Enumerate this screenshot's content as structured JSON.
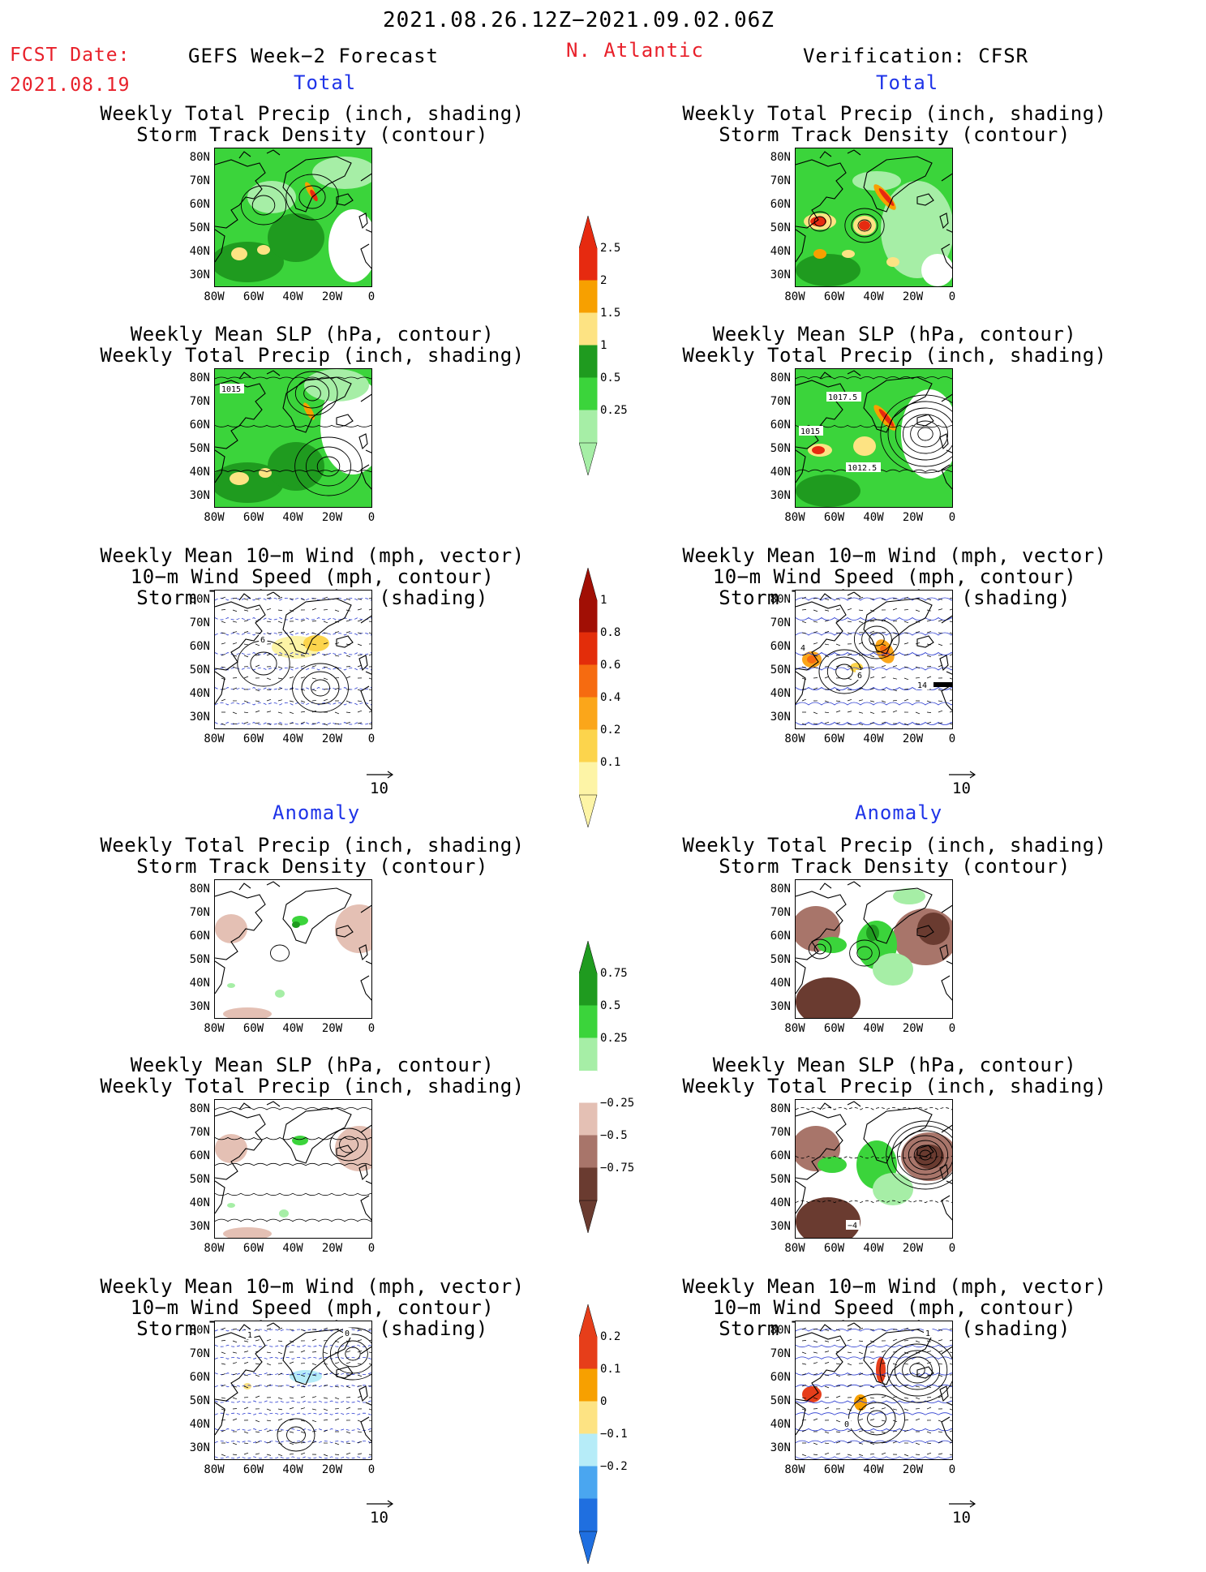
{
  "header": {
    "valid_period": "2021.08.26.12Z−2021.09.02.06Z",
    "fcst_label": "FCST Date:",
    "fcst_date": "2021.08.19",
    "left_title": "GEFS Week−2 Forecast",
    "region": "N. Atlantic",
    "right_title": "Verification: CFSR"
  },
  "sections": {
    "total": "Total",
    "anomaly": "Anomaly"
  },
  "panel_titles": {
    "precip_track": [
      "Weekly Total Precip (inch, shading)",
      "Storm Track Density (contour)"
    ],
    "slp_precip": [
      "Weekly Mean SLP (hPa, contour)",
      "Weekly Total Precip (inch, shading)"
    ],
    "wind_track": [
      "Weekly Mean 10−m Wind (mph, vector)",
      "10−m Wind Speed (mph, contour)",
      "Storm Track Density (shading)"
    ]
  },
  "axes": {
    "lat_labels": [
      "80N",
      "70N",
      "60N",
      "50N",
      "40N",
      "30N"
    ],
    "lon_labels": [
      "80W",
      "60W",
      "40W",
      "20W",
      "0"
    ]
  },
  "vector_reference": "10",
  "contour_labels": {
    "gefs_total_slp": [
      "1015"
    ],
    "cfsr_total_slp": [
      "1017.5",
      "1015",
      "1012.5"
    ],
    "gefs_total_wind": [
      "6"
    ],
    "cfsr_total_wind": [
      "4",
      "6",
      "14"
    ],
    "gefs_anom_wind": [
      "1",
      "0"
    ],
    "cfsr_anom_wind": [
      "1",
      "0"
    ],
    "cfsr_anom_slp": [
      "−4"
    ]
  },
  "colorbars": {
    "total_precip": {
      "labels": [
        "2.5",
        "2",
        "1.5",
        "1",
        "0.5",
        "0.25"
      ],
      "colors": [
        "#e62a10",
        "#f7a000",
        "#fde383",
        "#1f9b1f",
        "#3bd43b",
        "#a6eea6"
      ]
    },
    "total_track": {
      "labels": [
        "1",
        "0.8",
        "0.6",
        "0.4",
        "0.2",
        "0.1"
      ],
      "colors": [
        "#a10f05",
        "#e32d0a",
        "#f66b10",
        "#fba61a",
        "#fcd44c",
        "#fdf4a6"
      ]
    },
    "anom_precip": {
      "labels": [
        "0.75",
        "0.5",
        "0.25",
        "−0.25",
        "−0.5",
        "−0.75"
      ],
      "colors": [
        "#1f9b1f",
        "#3bd43b",
        "#a6eea6",
        "#ffffff",
        "#e4c0b4",
        "#a8756a",
        "#6a3b30"
      ]
    },
    "anom_track": {
      "labels": [
        "0.2",
        "0.1",
        "0",
        "−0.1",
        "−0.2"
      ],
      "colors": [
        "#e63e1a",
        "#f7a000",
        "#fde383",
        "#b6ecf8",
        "#4aa6f0",
        "#1f6fe0"
      ]
    }
  }
}
